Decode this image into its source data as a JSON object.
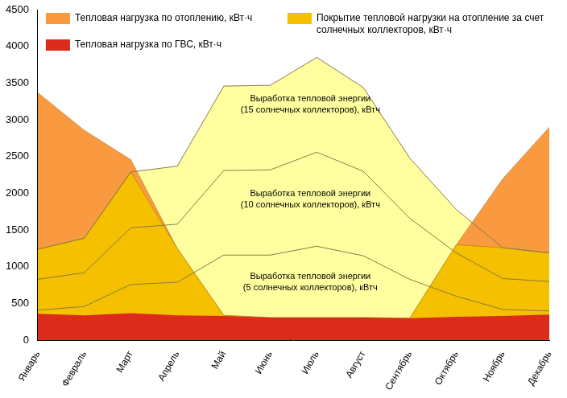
{
  "chart_data": {
    "type": "area",
    "categories": [
      "Январь",
      "Февраль",
      "Март",
      "Апрель",
      "Май",
      "Июнь",
      "Июль",
      "Август",
      "Сентябрь",
      "Октябрь",
      "Ноябрь",
      "Декабрь"
    ],
    "series": [
      {
        "name": "Выработка тепловой энергии (15 солнечных коллекторов), кВтч",
        "type": "line",
        "color": "#ffffa0",
        "values": [
          1240,
          1390,
          2290,
          2370,
          3460,
          3470,
          3850,
          3440,
          2480,
          1780,
          1260,
          1190
        ]
      },
      {
        "name": "Выработка тепловой энергии (10 солнечных коллекторов), кВтч",
        "type": "line",
        "color": "#ffffa0",
        "values": [
          830,
          920,
          1530,
          1580,
          2310,
          2320,
          2560,
          2300,
          1660,
          1190,
          840,
          800
        ]
      },
      {
        "name": "Выработка тепловой энергии (5 солнечных коллекторов), кВтч",
        "type": "line",
        "color": "#ffffa0",
        "values": [
          410,
          460,
          760,
          790,
          1160,
          1160,
          1280,
          1150,
          830,
          600,
          420,
          400
        ]
      },
      {
        "name": "Тепловая нагрузка по отоплению, кВт·ч",
        "type": "area",
        "color": "#fa9a40",
        "stacked": true,
        "values": [
          3010,
          2520,
          2090,
          910,
          10,
          0,
          0,
          0,
          0,
          980,
          1870,
          2550
        ]
      },
      {
        "name": "Тепловая нагрузка по ГВС, кВт·ч",
        "type": "area",
        "color": "#dc2a1c",
        "values": [
          360,
          340,
          370,
          340,
          330,
          310,
          310,
          310,
          300,
          320,
          330,
          350
        ]
      },
      {
        "name": "Покрытие тепловой нагрузки на отопление за счет солнечных коллекторов, кВт·ч",
        "type": "area",
        "color": "#f4c000",
        "stacked": true,
        "values": [
          880,
          1050,
          1920,
          910,
          10,
          0,
          0,
          0,
          0,
          980,
          930,
          840
        ]
      }
    ],
    "ylim": [
      0,
      4500
    ],
    "yticks": [
      0,
      500,
      1000,
      1500,
      2000,
      2500,
      3000,
      3500,
      4000,
      4500
    ],
    "grid": false,
    "legend": "top"
  }
}
